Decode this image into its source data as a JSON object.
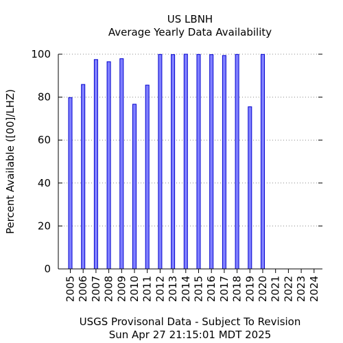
{
  "chart_data": {
    "type": "bar",
    "title": "US LBNH",
    "subtitle": "Average Yearly Data Availability",
    "ylabel": "Percent Available ([00]/LHZ)",
    "xlabel": "USGS Provisonal Data - Subject To Revision",
    "footer": "Sun Apr 27 21:15:01 MDT 2025",
    "ylim": [
      0,
      100
    ],
    "yticks": [
      "0",
      "20",
      "40",
      "60",
      "80",
      "100"
    ],
    "categories": [
      "2005",
      "2006",
      "2007",
      "2008",
      "2009",
      "2010",
      "2011",
      "2012",
      "2013",
      "2014",
      "2015",
      "2016",
      "2017",
      "2018",
      "2019",
      "2020",
      "2021",
      "2022",
      "2023",
      "2024"
    ],
    "values": [
      79.8,
      85.9,
      97.5,
      96.5,
      97.9,
      76.7,
      85.6,
      99.9,
      99.8,
      100,
      99.9,
      99.8,
      99.4,
      99.9,
      75.5,
      99.9,
      null,
      null,
      null,
      null
    ],
    "grid": true,
    "bar_fill": "#8080ff",
    "bar_stroke": "#0000cc"
  }
}
